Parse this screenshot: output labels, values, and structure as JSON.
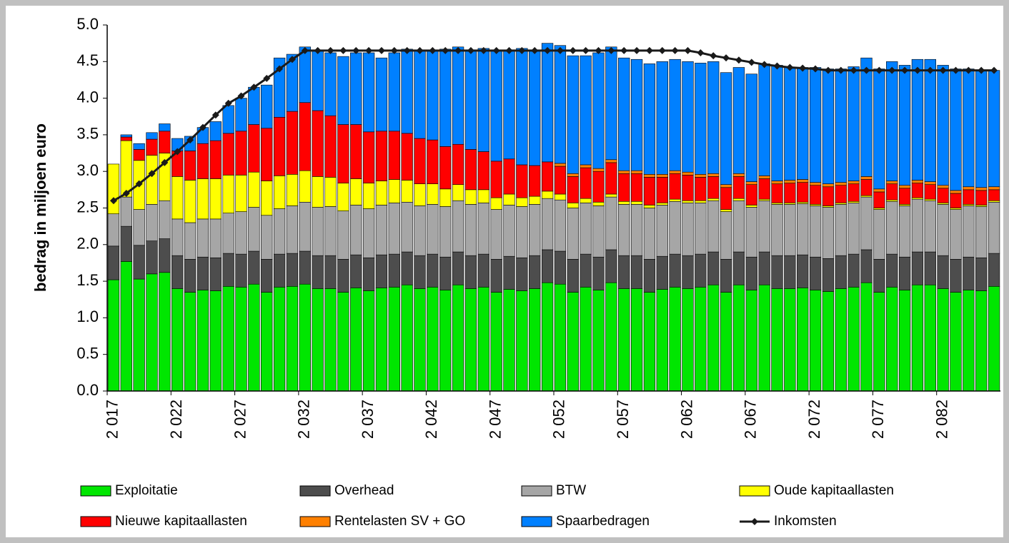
{
  "chart_data": {
    "type": "bar",
    "stacked": true,
    "y_label": "bedrag in miljoen euro",
    "categories": [
      "2 017",
      null,
      null,
      null,
      null,
      "2 022",
      null,
      null,
      null,
      null,
      "2 027",
      null,
      null,
      null,
      null,
      "2 032",
      null,
      null,
      null,
      null,
      "2 037",
      null,
      null,
      null,
      null,
      "2 042",
      null,
      null,
      null,
      null,
      "2 047",
      null,
      null,
      null,
      null,
      "2 052",
      null,
      null,
      null,
      null,
      "2 057",
      null,
      null,
      null,
      null,
      "2 062",
      null,
      null,
      null,
      null,
      "2 067",
      null,
      null,
      null,
      null,
      "2 072",
      null,
      null,
      null,
      null,
      "2 077",
      null,
      null,
      null,
      null,
      "2 082",
      null,
      null,
      null,
      null
    ],
    "ylim": [
      0,
      5
    ],
    "yticks": [
      {
        "value": 0,
        "label": "0.0"
      },
      0.5,
      {
        "value": 1,
        "label": "1.0"
      },
      1.5,
      {
        "value": 2,
        "label": "2.0"
      },
      2.5,
      {
        "value": 3,
        "label": "3.0"
      },
      3.5,
      {
        "value": 4,
        "label": "4.0"
      },
      4.5,
      {
        "value": 5,
        "label": "5.0"
      }
    ],
    "grid": false,
    "legend": "bottom",
    "series": [
      {
        "name": "Exploitatie",
        "color": "#00e600",
        "values": [
          1.52,
          1.77,
          1.53,
          1.6,
          1.62,
          1.4,
          1.35,
          1.38,
          1.37,
          1.43,
          1.42,
          1.46,
          1.35,
          1.42,
          1.43,
          1.46,
          1.4,
          1.4,
          1.35,
          1.41,
          1.37,
          1.41,
          1.42,
          1.45,
          1.4,
          1.42,
          1.38,
          1.45,
          1.4,
          1.42,
          1.35,
          1.39,
          1.37,
          1.4,
          1.48,
          1.46,
          1.35,
          1.42,
          1.38,
          1.48,
          1.4,
          1.4,
          1.35,
          1.39,
          1.42,
          1.4,
          1.42,
          1.45,
          1.35,
          1.45,
          1.38,
          1.45,
          1.4,
          1.4,
          1.41,
          1.38,
          1.36,
          1.4,
          1.42,
          1.48,
          1.35,
          1.42,
          1.38,
          1.45,
          1.45,
          1.4,
          1.35,
          1.38,
          1.37,
          1.43
        ]
      },
      {
        "name": "Overhead",
        "color": "#4d4d4d",
        "values": [
          0.46,
          0.48,
          0.46,
          0.45,
          0.46,
          0.45,
          0.45,
          0.45,
          0.45,
          0.45,
          0.45,
          0.45,
          0.45,
          0.45,
          0.45,
          0.45,
          0.45,
          0.45,
          0.45,
          0.45,
          0.45,
          0.45,
          0.45,
          0.45,
          0.45,
          0.45,
          0.45,
          0.45,
          0.45,
          0.45,
          0.45,
          0.45,
          0.45,
          0.45,
          0.45,
          0.45,
          0.45,
          0.45,
          0.45,
          0.45,
          0.45,
          0.45,
          0.45,
          0.45,
          0.45,
          0.45,
          0.45,
          0.45,
          0.45,
          0.45,
          0.45,
          0.45,
          0.45,
          0.45,
          0.45,
          0.45,
          0.45,
          0.45,
          0.45,
          0.45,
          0.45,
          0.45,
          0.45,
          0.45,
          0.45,
          0.45,
          0.45,
          0.45,
          0.45,
          0.45
        ]
      },
      {
        "name": "BTW",
        "color": "#a6a6a6",
        "values": [
          0.44,
          0.4,
          0.49,
          0.5,
          0.52,
          0.5,
          0.5,
          0.52,
          0.53,
          0.55,
          0.58,
          0.6,
          0.6,
          0.62,
          0.65,
          0.67,
          0.66,
          0.67,
          0.66,
          0.68,
          0.67,
          0.68,
          0.7,
          0.68,
          0.68,
          0.68,
          0.69,
          0.7,
          0.7,
          0.7,
          0.68,
          0.7,
          0.7,
          0.7,
          0.7,
          0.7,
          0.7,
          0.7,
          0.7,
          0.72,
          0.7,
          0.7,
          0.7,
          0.7,
          0.72,
          0.72,
          0.7,
          0.7,
          0.65,
          0.7,
          0.68,
          0.7,
          0.7,
          0.7,
          0.7,
          0.7,
          0.7,
          0.7,
          0.7,
          0.72,
          0.68,
          0.72,
          0.7,
          0.72,
          0.7,
          0.7,
          0.68,
          0.7,
          0.7,
          0.7
        ]
      },
      {
        "name": "Oude kapitaallasten",
        "color": "#ffff00",
        "values": [
          0.68,
          0.77,
          0.67,
          0.67,
          0.65,
          0.58,
          0.58,
          0.55,
          0.55,
          0.52,
          0.5,
          0.48,
          0.47,
          0.45,
          0.43,
          0.43,
          0.42,
          0.4,
          0.38,
          0.36,
          0.35,
          0.33,
          0.32,
          0.3,
          0.3,
          0.28,
          0.24,
          0.22,
          0.2,
          0.18,
          0.16,
          0.15,
          0.12,
          0.11,
          0.1,
          0.08,
          0.07,
          0.06,
          0.05,
          0.04,
          0.04,
          0.04,
          0.04,
          0.03,
          0.03,
          0.03,
          0.03,
          0.03,
          0.03,
          0.03,
          0.03,
          0.02,
          0.02,
          0.02,
          0.02,
          0.02,
          0.02,
          0.02,
          0.02,
          0.02,
          0.02,
          0.02,
          0.02,
          0.02,
          0.02,
          0.02,
          0.02,
          0.02,
          0.02,
          0.02
        ]
      },
      {
        "name": "Nieuwe kapitaallasten",
        "color": "#ff0000",
        "values": [
          0,
          0.05,
          0.15,
          0.22,
          0.3,
          0.35,
          0.4,
          0.48,
          0.52,
          0.57,
          0.6,
          0.65,
          0.72,
          0.8,
          0.86,
          0.93,
          0.9,
          0.84,
          0.8,
          0.74,
          0.7,
          0.68,
          0.66,
          0.64,
          0.62,
          0.6,
          0.58,
          0.55,
          0.55,
          0.52,
          0.5,
          0.48,
          0.45,
          0.42,
          0.4,
          0.38,
          0.36,
          0.42,
          0.42,
          0.43,
          0.38,
          0.38,
          0.38,
          0.35,
          0.35,
          0.35,
          0.32,
          0.3,
          0.3,
          0.3,
          0.28,
          0.28,
          0.26,
          0.27,
          0.27,
          0.26,
          0.26,
          0.24,
          0.24,
          0.22,
          0.22,
          0.22,
          0.22,
          0.2,
          0.2,
          0.2,
          0.2,
          0.2,
          0.2,
          0.15
        ]
      },
      {
        "name": "Rentelasten SV + GO",
        "color": "#ff8000",
        "values": [
          0,
          0,
          0,
          0,
          0,
          0,
          0,
          0,
          0,
          0,
          0,
          0,
          0,
          0,
          0,
          0,
          0,
          0,
          0,
          0,
          0,
          0,
          0,
          0,
          0,
          0,
          0,
          0,
          0,
          0,
          0,
          0,
          0,
          0,
          0,
          0.04,
          0.04,
          0.04,
          0.04,
          0.04,
          0.04,
          0.04,
          0.04,
          0.04,
          0.04,
          0.04,
          0.04,
          0.04,
          0.04,
          0.04,
          0.04,
          0.04,
          0.04,
          0.04,
          0.04,
          0.04,
          0.04,
          0.04,
          0.04,
          0.04,
          0.04,
          0.04,
          0.04,
          0.04,
          0.04,
          0.04,
          0.04,
          0.04,
          0.04,
          0.04
        ]
      },
      {
        "name": "Spaarbedragen",
        "color": "#0080ff",
        "values": [
          0,
          0.03,
          0.08,
          0.09,
          0.1,
          0.17,
          0.2,
          0.22,
          0.26,
          0.38,
          0.45,
          0.51,
          0.59,
          0.81,
          0.78,
          0.76,
          0.82,
          0.86,
          0.93,
          0.98,
          1.08,
          1.0,
          1.07,
          1.15,
          1.21,
          1.22,
          1.33,
          1.33,
          1.36,
          1.41,
          1.51,
          1.48,
          1.59,
          1.58,
          1.62,
          1.61,
          1.61,
          1.49,
          1.58,
          1.54,
          1.54,
          1.52,
          1.51,
          1.54,
          1.52,
          1.51,
          1.52,
          1.53,
          1.53,
          1.45,
          1.47,
          1.53,
          1.58,
          1.54,
          1.53,
          1.57,
          1.57,
          1.55,
          1.56,
          1.62,
          1.64,
          1.63,
          1.64,
          1.65,
          1.67,
          1.64,
          1.66,
          1.61,
          1.6,
          1.59
        ]
      },
      {
        "name": "Inkomsten",
        "type": "line",
        "color": "#1a1a1a",
        "values": [
          2.6,
          2.7,
          2.83,
          2.97,
          3.12,
          3.27,
          3.43,
          3.6,
          3.77,
          3.93,
          4.03,
          4.15,
          4.27,
          4.4,
          4.53,
          4.65,
          4.65,
          4.65,
          4.65,
          4.65,
          4.65,
          4.65,
          4.65,
          4.65,
          4.65,
          4.65,
          4.65,
          4.65,
          4.65,
          4.65,
          4.65,
          4.65,
          4.65,
          4.65,
          4.65,
          4.65,
          4.65,
          4.65,
          4.65,
          4.65,
          4.65,
          4.65,
          4.65,
          4.65,
          4.65,
          4.65,
          4.62,
          4.58,
          4.55,
          4.52,
          4.49,
          4.46,
          4.44,
          4.42,
          4.41,
          4.4,
          4.38,
          4.38,
          4.38,
          4.38,
          4.38,
          4.38,
          4.38,
          4.38,
          4.38,
          4.38,
          4.38,
          4.38,
          4.38,
          4.38
        ]
      }
    ]
  }
}
